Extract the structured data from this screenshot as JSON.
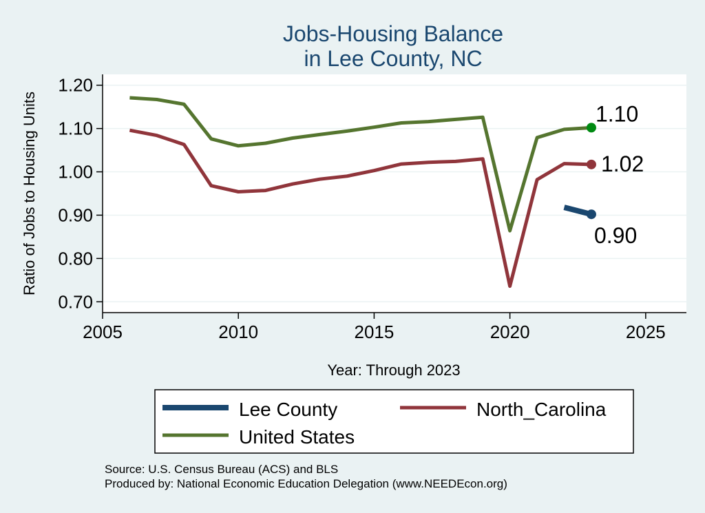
{
  "chart_data": {
    "type": "line",
    "title": [
      "Jobs-Housing Balance",
      "in Lee County, NC"
    ],
    "xlabel": "Year: Through 2023",
    "ylabel": "Ratio of Jobs to Housing Units",
    "xlim": [
      2005,
      2026.5
    ],
    "ylim": [
      0.675,
      1.225
    ],
    "xticks": [
      2005,
      2010,
      2015,
      2020,
      2025
    ],
    "yticks": [
      0.7,
      0.8,
      0.9,
      1.0,
      1.1,
      1.2
    ],
    "ytick_labels": [
      "0.70",
      "0.80",
      "0.90",
      "1.00",
      "1.10",
      "1.20"
    ],
    "grid": true,
    "series": [
      {
        "name": "Lee County",
        "color": "#1a476f",
        "x": [
          2022,
          2023
        ],
        "values": [
          0.918,
          0.902
        ],
        "end_label": "0.90",
        "label_position": "below"
      },
      {
        "name": "North_Carolina",
        "color": "#90353b",
        "x": [
          2006,
          2007,
          2008,
          2009,
          2010,
          2011,
          2012,
          2013,
          2014,
          2015,
          2016,
          2017,
          2018,
          2019,
          2020,
          2021,
          2022,
          2023
        ],
        "values": [
          1.096,
          1.084,
          1.063,
          0.968,
          0.954,
          0.957,
          0.972,
          0.983,
          0.99,
          1.003,
          1.018,
          1.022,
          1.024,
          1.03,
          0.736,
          0.982,
          1.019,
          1.017
        ],
        "end_label": "1.02",
        "label_position": "right"
      },
      {
        "name": "United States",
        "color": "#55752f",
        "x": [
          2006,
          2007,
          2008,
          2009,
          2010,
          2011,
          2012,
          2013,
          2014,
          2015,
          2016,
          2017,
          2018,
          2019,
          2020,
          2021,
          2022,
          2023
        ],
        "values": [
          1.171,
          1.167,
          1.156,
          1.076,
          1.06,
          1.066,
          1.078,
          1.086,
          1.094,
          1.103,
          1.113,
          1.116,
          1.121,
          1.126,
          0.864,
          1.079,
          1.098,
          1.102
        ],
        "end_label": "1.10",
        "label_position": "above-right"
      }
    ],
    "end_marker_colors": {
      "Lee County": "#1a476f",
      "North_Carolina": "#90353b",
      "United States": "#008a12"
    },
    "legend": {
      "position": "bottom",
      "entries": [
        "Lee County",
        "North_Carolina",
        "United States"
      ]
    },
    "notes": [
      "Source: U.S. Census Bureau (ACS) and BLS",
      "Produced by: National Economic Education Delegation (www.NEEDEcon.org)"
    ]
  }
}
